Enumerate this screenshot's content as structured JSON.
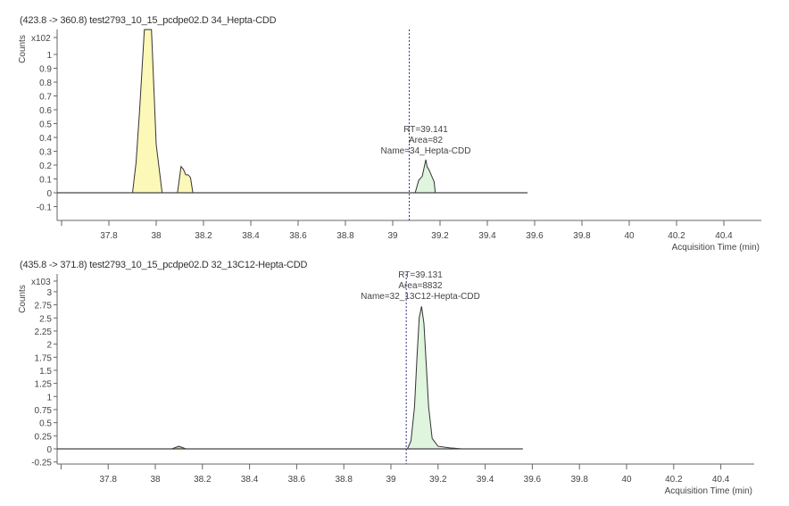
{
  "chart_data": [
    {
      "type": "area",
      "title": "(423.8 -> 360.8) test2793_10_15_pcdpe02.D 34_Hepta-CDD",
      "ylabel": "Counts",
      "yscale_label": "x10 2",
      "xlabel": "Acquisition Time (min)",
      "yticks": [
        "1",
        "0.9",
        "0.8",
        "0.7",
        "0.6",
        "0.5",
        "0.4",
        "0.3",
        "0.2",
        "0.1",
        "0",
        "-0.1"
      ],
      "xticks": [
        "37.8",
        "38",
        "38.2",
        "38.4",
        "38.6",
        "38.8",
        "39",
        "39.2",
        "39.4",
        "39.6",
        "39.8",
        "40",
        "40.2",
        "40.4"
      ],
      "xlim": [
        37.58,
        40.55
      ],
      "ylim": [
        -0.2,
        1.18
      ],
      "marker_rt": 39.07,
      "annotation": {
        "rt": "RT=39.141",
        "area": "Area=82",
        "name": "Name=34_Hepta-CDD"
      },
      "trace_end": 39.57,
      "peaks": [
        {
          "x": [
            37.9,
            37.915,
            37.93,
            37.95,
            37.98,
            38.0,
            38.025
          ],
          "y": [
            0,
            0.22,
            0.6,
            1.2,
            1.2,
            0.35,
            0
          ]
        },
        {
          "x": [
            38.09,
            38.105,
            38.115,
            38.125,
            38.135,
            38.145,
            38.155
          ],
          "y": [
            0,
            0.19,
            0.17,
            0.13,
            0.13,
            0.11,
            0
          ]
        },
        {
          "x": [
            39.095,
            39.11,
            39.125,
            39.14,
            39.145,
            39.155,
            39.165,
            39.175,
            39.18
          ],
          "y": [
            0,
            0.09,
            0.12,
            0.24,
            0.19,
            0.16,
            0.12,
            0.08,
            0
          ]
        }
      ],
      "peak_colors": [
        "#fbf8b8",
        "#fbf8b8",
        "#dff5de"
      ]
    },
    {
      "type": "area",
      "title": "(435.8 -> 371.8) test2793_10_15_pcdpe02.D 32_13C12-Hepta-CDD",
      "ylabel": "Counts",
      "yscale_label": "x10 3",
      "xlabel": "Acquisition Time (min)",
      "yticks": [
        "3",
        "2.75",
        "2.5",
        "2.25",
        "2",
        "1.75",
        "1.5",
        "1.25",
        "1",
        "0.75",
        "0.5",
        "0.25",
        "0",
        "-0.25"
      ],
      "xticks": [
        "37.8",
        "38",
        "38.2",
        "38.4",
        "38.6",
        "38.8",
        "39",
        "39.2",
        "39.4",
        "39.6",
        "39.8",
        "40",
        "40.2",
        "40.4"
      ],
      "xlim": [
        37.58,
        40.55
      ],
      "ylim": [
        -0.3,
        3.2
      ],
      "marker_rt": 39.065,
      "annotation": {
        "rt": "RT=39.131",
        "area": "Area=8832",
        "name": "Name=32_13C12-Hepta-CDD"
      },
      "trace_end": 39.56,
      "peaks": [
        {
          "x": [
            38.07,
            38.1,
            38.13
          ],
          "y": [
            0,
            0.05,
            0
          ]
        },
        {
          "x": [
            39.07,
            39.085,
            39.1,
            39.11,
            39.12,
            39.13,
            39.14,
            39.15,
            39.16,
            39.175,
            39.2,
            39.25,
            39.3
          ],
          "y": [
            0,
            0.15,
            0.8,
            1.7,
            2.5,
            2.72,
            2.4,
            1.6,
            0.8,
            0.2,
            0.05,
            0.02,
            0
          ]
        }
      ],
      "peak_colors": [
        "#c9cf9a",
        "#dff5de"
      ]
    }
  ]
}
